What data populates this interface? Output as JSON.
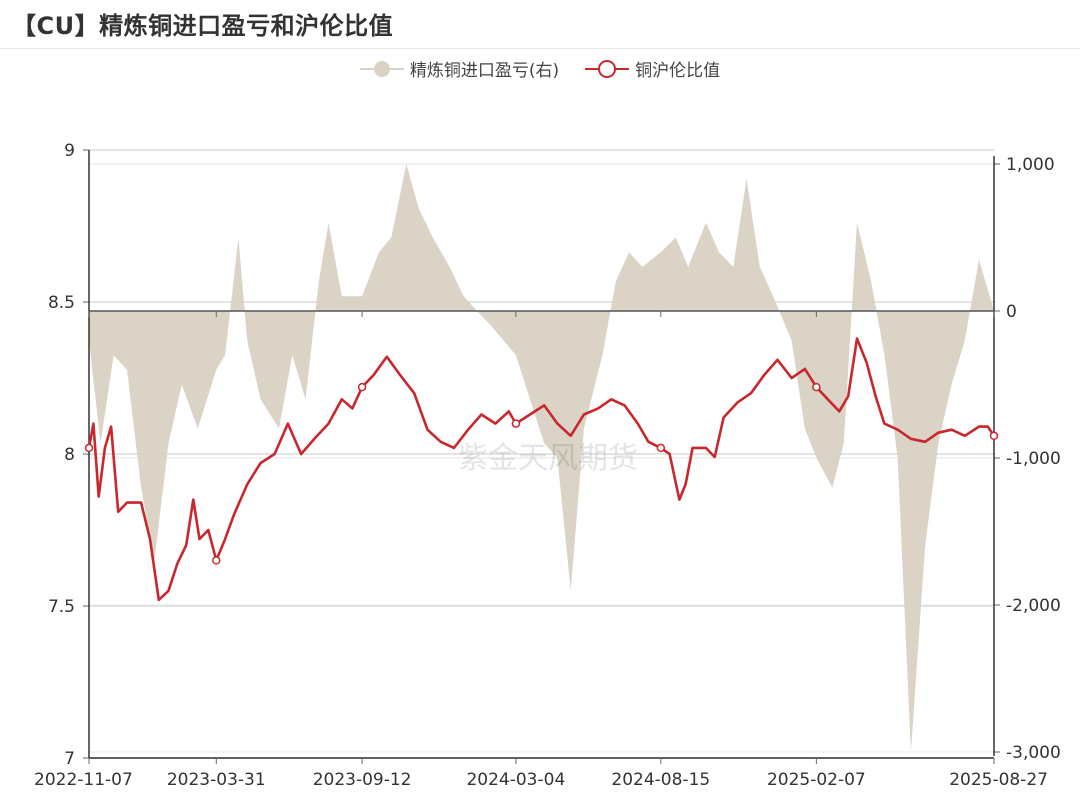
{
  "title": "【CU】精炼铜进口盈亏和沪伦比值",
  "watermark": "紫金天风期货",
  "chart_data": {
    "type": "line+area",
    "x_tick_labels": [
      "2022-11-07",
      "2023-03-31",
      "2023-09-12",
      "2024-03-04",
      "2024-08-15",
      "2025-02-07",
      "2025-08-27"
    ],
    "x_range": [
      "2022-11-07",
      "2025-08-27"
    ],
    "left_axis": {
      "ticks": [
        "9",
        "8.5",
        "8",
        "7.5",
        "7"
      ],
      "range": [
        7,
        9
      ]
    },
    "right_axis": {
      "ticks": [
        "1,000",
        "0",
        "-1,000",
        "-2,000",
        "-3,000"
      ],
      "range": [
        -3000,
        1000
      ]
    },
    "grid": "horizontal",
    "legend_position": "top-center",
    "series": [
      {
        "name": "精炼铜进口盈亏(右)",
        "axis": "right",
        "style": "area",
        "color": "#d9d1c3",
        "points": [
          [
            "2022-11-07",
            -200
          ],
          [
            "2022-11-20",
            -900
          ],
          [
            "2022-12-05",
            -300
          ],
          [
            "2022-12-20",
            -400
          ],
          [
            "2023-01-05",
            -1200
          ],
          [
            "2023-01-20",
            -1700
          ],
          [
            "2023-02-05",
            -900
          ],
          [
            "2023-02-20",
            -500
          ],
          [
            "2023-03-10",
            -800
          ],
          [
            "2023-03-31",
            -400
          ],
          [
            "2023-04-10",
            -300
          ],
          [
            "2023-04-25",
            500
          ],
          [
            "2023-05-05",
            -200
          ],
          [
            "2023-05-20",
            -600
          ],
          [
            "2023-06-10",
            -800
          ],
          [
            "2023-06-25",
            -300
          ],
          [
            "2023-07-10",
            -600
          ],
          [
            "2023-07-25",
            200
          ],
          [
            "2023-08-05",
            600
          ],
          [
            "2023-08-20",
            100
          ],
          [
            "2023-09-12",
            100
          ],
          [
            "2023-10-01",
            400
          ],
          [
            "2023-10-15",
            500
          ],
          [
            "2023-11-01",
            1000
          ],
          [
            "2023-11-15",
            700
          ],
          [
            "2023-12-01",
            500
          ],
          [
            "2023-12-20",
            300
          ],
          [
            "2024-01-05",
            100
          ],
          [
            "2024-01-20",
            0
          ],
          [
            "2024-02-05",
            -100
          ],
          [
            "2024-03-04",
            -300
          ],
          [
            "2024-03-20",
            -600
          ],
          [
            "2024-04-05",
            -900
          ],
          [
            "2024-04-20",
            -1000
          ],
          [
            "2024-05-05",
            -1900
          ],
          [
            "2024-05-20",
            -800
          ],
          [
            "2024-06-10",
            -300
          ],
          [
            "2024-06-25",
            200
          ],
          [
            "2024-07-10",
            400
          ],
          [
            "2024-07-25",
            300
          ],
          [
            "2024-08-15",
            400
          ],
          [
            "2024-09-01",
            500
          ],
          [
            "2024-09-15",
            300
          ],
          [
            "2024-10-05",
            600
          ],
          [
            "2024-10-20",
            400
          ],
          [
            "2024-11-05",
            300
          ],
          [
            "2024-11-20",
            900
          ],
          [
            "2024-12-05",
            300
          ],
          [
            "2024-12-20",
            100
          ],
          [
            "2025-01-10",
            -200
          ],
          [
            "2025-01-25",
            -800
          ],
          [
            "2025-02-07",
            -1000
          ],
          [
            "2025-02-25",
            -1200
          ],
          [
            "2025-03-10",
            -900
          ],
          [
            "2025-03-25",
            600
          ],
          [
            "2025-04-10",
            200
          ],
          [
            "2025-04-25",
            -300
          ],
          [
            "2025-05-10",
            -1000
          ],
          [
            "2025-05-25",
            -3000
          ],
          [
            "2025-06-10",
            -1600
          ],
          [
            "2025-06-25",
            -900
          ],
          [
            "2025-07-10",
            -500
          ],
          [
            "2025-07-25",
            -200
          ],
          [
            "2025-08-10",
            350
          ],
          [
            "2025-08-27",
            0
          ]
        ]
      },
      {
        "name": "铜沪伦比值",
        "axis": "left",
        "style": "line",
        "color": "#c8282d",
        "points": [
          [
            "2022-11-07",
            8.02
          ],
          [
            "2022-11-12",
            8.1
          ],
          [
            "2022-11-18",
            7.86
          ],
          [
            "2022-11-25",
            8.02
          ],
          [
            "2022-12-02",
            8.09
          ],
          [
            "2022-12-10",
            7.81
          ],
          [
            "2022-12-20",
            7.84
          ],
          [
            "2023-01-05",
            7.84
          ],
          [
            "2023-01-15",
            7.72
          ],
          [
            "2023-01-25",
            7.52
          ],
          [
            "2023-02-05",
            7.55
          ],
          [
            "2023-02-15",
            7.64
          ],
          [
            "2023-02-25",
            7.7
          ],
          [
            "2023-03-05",
            7.85
          ],
          [
            "2023-03-12",
            7.72
          ],
          [
            "2023-03-22",
            7.75
          ],
          [
            "2023-03-31",
            7.65
          ],
          [
            "2023-04-10",
            7.72
          ],
          [
            "2023-04-20",
            7.8
          ],
          [
            "2023-05-05",
            7.9
          ],
          [
            "2023-05-20",
            7.97
          ],
          [
            "2023-06-05",
            8.0
          ],
          [
            "2023-06-20",
            8.1
          ],
          [
            "2023-07-05",
            8.0
          ],
          [
            "2023-07-20",
            8.05
          ],
          [
            "2023-08-05",
            8.1
          ],
          [
            "2023-08-20",
            8.18
          ],
          [
            "2023-09-01",
            8.15
          ],
          [
            "2023-09-12",
            8.22
          ],
          [
            "2023-09-25",
            8.26
          ],
          [
            "2023-10-10",
            8.32
          ],
          [
            "2023-10-25",
            8.26
          ],
          [
            "2023-11-10",
            8.2
          ],
          [
            "2023-11-25",
            8.08
          ],
          [
            "2023-12-10",
            8.04
          ],
          [
            "2023-12-25",
            8.02
          ],
          [
            "2024-01-10",
            8.08
          ],
          [
            "2024-01-25",
            8.13
          ],
          [
            "2024-02-10",
            8.1
          ],
          [
            "2024-02-25",
            8.14
          ],
          [
            "2024-03-04",
            8.1
          ],
          [
            "2024-03-20",
            8.13
          ],
          [
            "2024-04-05",
            8.16
          ],
          [
            "2024-04-20",
            8.1
          ],
          [
            "2024-05-05",
            8.06
          ],
          [
            "2024-05-20",
            8.13
          ],
          [
            "2024-06-05",
            8.15
          ],
          [
            "2024-06-20",
            8.18
          ],
          [
            "2024-07-05",
            8.16
          ],
          [
            "2024-07-20",
            8.1
          ],
          [
            "2024-08-01",
            8.04
          ],
          [
            "2024-08-15",
            8.02
          ],
          [
            "2024-08-25",
            8.0
          ],
          [
            "2024-09-05",
            7.85
          ],
          [
            "2024-09-12",
            7.9
          ],
          [
            "2024-09-20",
            8.02
          ],
          [
            "2024-10-05",
            8.02
          ],
          [
            "2024-10-15",
            7.99
          ],
          [
            "2024-10-25",
            8.12
          ],
          [
            "2024-11-10",
            8.17
          ],
          [
            "2024-11-25",
            8.2
          ],
          [
            "2024-12-10",
            8.26
          ],
          [
            "2024-12-25",
            8.31
          ],
          [
            "2025-01-10",
            8.25
          ],
          [
            "2025-01-25",
            8.28
          ],
          [
            "2025-02-07",
            8.22
          ],
          [
            "2025-02-20",
            8.18
          ],
          [
            "2025-03-05",
            8.14
          ],
          [
            "2025-03-15",
            8.19
          ],
          [
            "2025-03-25",
            8.38
          ],
          [
            "2025-04-05",
            8.3
          ],
          [
            "2025-04-15",
            8.19
          ],
          [
            "2025-04-25",
            8.1
          ],
          [
            "2025-05-10",
            8.08
          ],
          [
            "2025-05-25",
            8.05
          ],
          [
            "2025-06-10",
            8.04
          ],
          [
            "2025-06-25",
            8.07
          ],
          [
            "2025-07-10",
            8.08
          ],
          [
            "2025-07-25",
            8.06
          ],
          [
            "2025-08-10",
            8.09
          ],
          [
            "2025-08-20",
            8.09
          ],
          [
            "2025-08-27",
            8.06
          ]
        ]
      }
    ]
  }
}
